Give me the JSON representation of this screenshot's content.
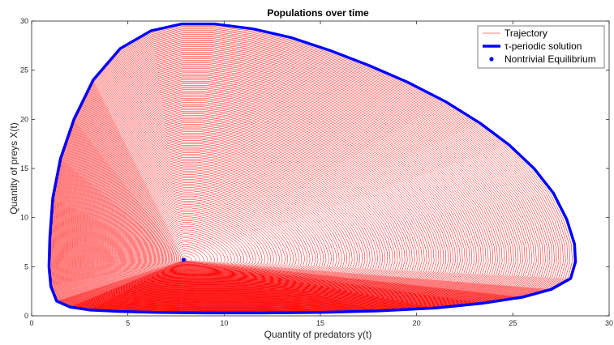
{
  "chart_data": {
    "type": "line",
    "title": "Populations over time",
    "xlabel": "Quantity of predators y(t)",
    "ylabel": "Quantity of preys X(t)",
    "xlim": [
      0,
      30
    ],
    "ylim": [
      0,
      30
    ],
    "xticks": [
      0,
      5,
      10,
      15,
      20,
      25,
      30
    ],
    "yticks": [
      0,
      5,
      10,
      15,
      20,
      25,
      30
    ],
    "grid": false,
    "legend_position": "top-right",
    "series": [
      {
        "name": "Trajectory",
        "style": "thin line",
        "color": "#ff0000",
        "equilibrium": [
          7.9,
          5.7
        ],
        "spiral_loops": 150
      },
      {
        "name": "τ-periodic solution",
        "style": "thick line",
        "color": "#0000ff",
        "x": [
          0.9,
          0.95,
          1.1,
          1.5,
          2.2,
          3.2,
          4.6,
          6.2,
          7.8,
          9.5,
          11.5,
          13.5,
          15.5,
          17.5,
          19.5,
          21.5,
          23.3,
          24.8,
          26.1,
          27.1,
          27.8,
          28.2,
          28.25,
          28.0,
          27.0,
          25.5,
          23.5,
          21.0,
          18.0,
          15.0,
          12.0,
          9.0,
          6.5,
          4.5,
          3.0,
          2.0,
          1.3,
          1.0,
          0.9
        ],
        "y": [
          5.0,
          8.0,
          12.0,
          16.0,
          20.0,
          24.0,
          27.2,
          29.0,
          29.7,
          29.7,
          29.2,
          28.3,
          27.0,
          25.5,
          23.8,
          21.8,
          19.6,
          17.4,
          15.0,
          12.5,
          9.8,
          7.3,
          5.5,
          3.8,
          2.7,
          1.9,
          1.3,
          0.8,
          0.5,
          0.35,
          0.3,
          0.3,
          0.35,
          0.45,
          0.6,
          0.9,
          1.5,
          3.0,
          5.0
        ]
      },
      {
        "name": "Nontrivial Equilibrium",
        "style": "marker",
        "color": "#0000ff",
        "x": [
          7.9
        ],
        "y": [
          5.7
        ]
      }
    ]
  }
}
